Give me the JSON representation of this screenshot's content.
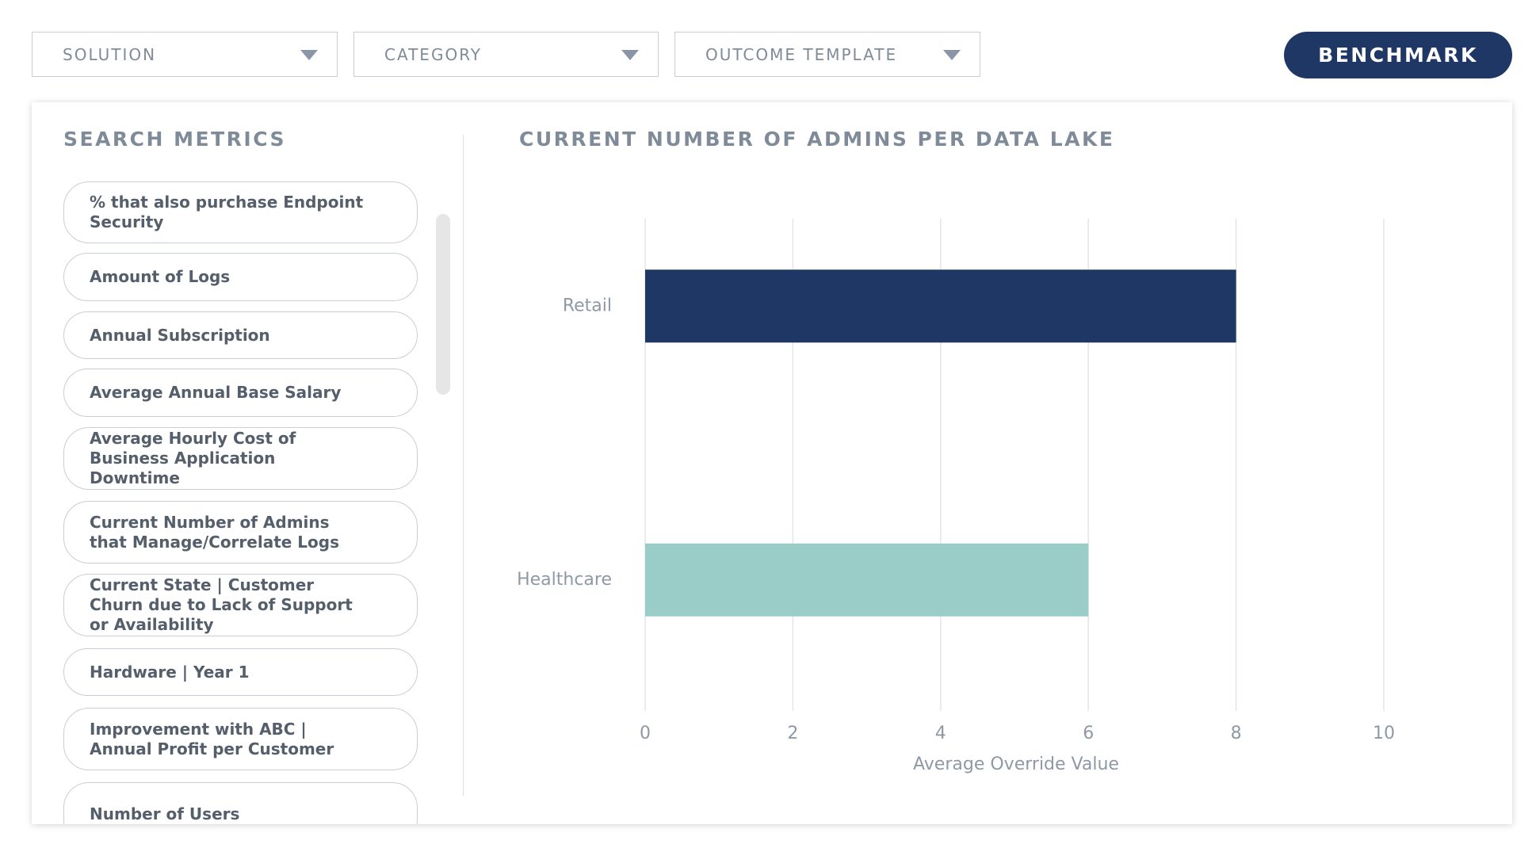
{
  "filters": [
    "SOLUTION",
    "CATEGORY",
    "OUTCOME TEMPLATE"
  ],
  "button": "BENCHMARK",
  "sidebar": {
    "title": "SEARCH METRICS",
    "items": [
      "% that also purchase Endpoint Security",
      "Amount of Logs",
      "Annual Subscription",
      "Average Annual Base Salary",
      "Average Hourly Cost of Business Application Downtime",
      "Current Number of Admins that Manage/Correlate Logs",
      "Current State | Customer Churn due to Lack of Support or Availability",
      "Hardware | Year 1",
      "Improvement with ABC | Annual Profit per Customer",
      "Number of Users"
    ]
  },
  "chart_data": {
    "type": "bar",
    "orientation": "horizontal",
    "title": "CURRENT NUMBER OF ADMINS PER DATA LAKE",
    "categories": [
      "Retail",
      "Healthcare"
    ],
    "values": [
      8,
      6
    ],
    "colors": [
      "#1e3764",
      "#9acdc8"
    ],
    "x_label": "Average Override Value",
    "xlim": [
      0,
      10
    ],
    "xticks": [
      0,
      2,
      4,
      6,
      8,
      10
    ],
    "grid": true
  }
}
